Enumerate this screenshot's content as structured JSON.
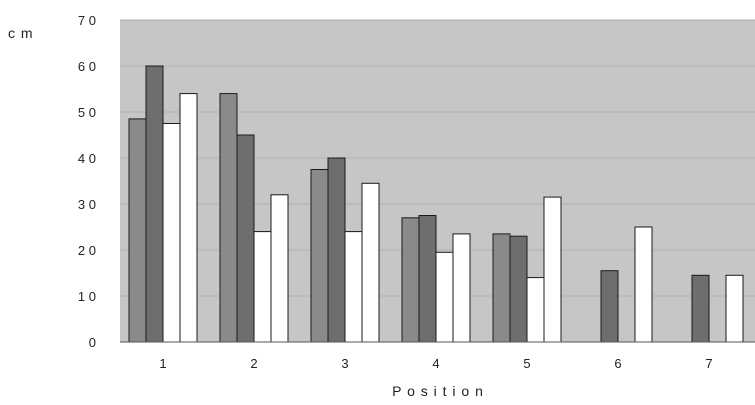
{
  "chart_data": {
    "type": "bar",
    "title": "",
    "xlabel": "P o s i t i o n",
    "ylabel": "c m",
    "categories": [
      "1",
      "2",
      "3",
      "4",
      "5",
      "6",
      "7"
    ],
    "y_tick_labels": [
      "0",
      "1 0",
      "2 0",
      "3 0",
      "4 0",
      "5 0",
      "6 0",
      "7 0"
    ],
    "ylim": [
      0,
      70
    ],
    "grid": true,
    "legend": "none",
    "colors": {
      "plot_background": "#c6c6c6",
      "gridline": "#b2b2b2",
      "series": [
        "#8a8a8a",
        "#6e6e6e",
        "#ffffff",
        "#ffffff"
      ],
      "bar_stroke": "#1a1a1a"
    },
    "series": [
      {
        "values": [
          48.5,
          54,
          37.5,
          27,
          23.5,
          null,
          null
        ]
      },
      {
        "values": [
          60,
          45,
          40,
          27.5,
          23,
          15.5,
          14.5
        ]
      },
      {
        "values": [
          47.5,
          24,
          24,
          19.5,
          14,
          null,
          null
        ]
      },
      {
        "values": [
          54,
          32,
          34.5,
          23.5,
          31.5,
          25,
          14.5
        ]
      }
    ]
  }
}
